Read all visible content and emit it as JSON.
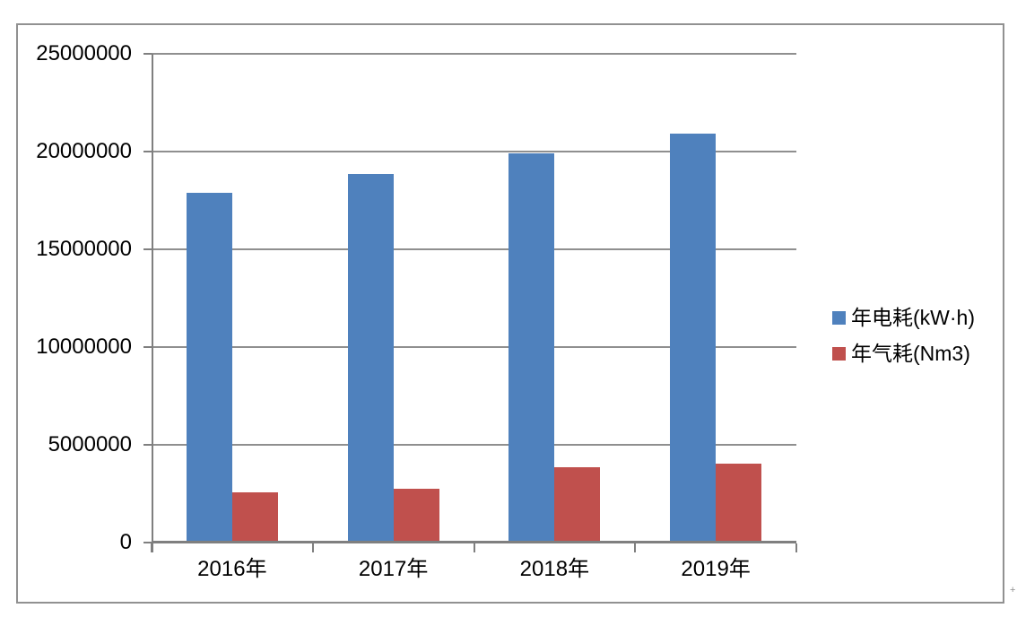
{
  "chart_data": {
    "type": "bar",
    "title": "",
    "xlabel": "",
    "ylabel": "",
    "categories": [
      "2016年",
      "2017年",
      "2018年",
      "2019年"
    ],
    "series": [
      {
        "name": "年电耗(kW·h)",
        "color": "#4F81BD",
        "values": [
          17900000,
          18850000,
          19900000,
          20900000
        ]
      },
      {
        "name": "年气耗(Nm3)",
        "color": "#C0504D",
        "values": [
          2550000,
          2750000,
          3850000,
          4050000
        ]
      }
    ],
    "ylim": [
      0,
      25000000
    ],
    "yticks": [
      25000000,
      20000000,
      15000000,
      10000000,
      5000000,
      0
    ],
    "grid": true,
    "legend_position": "right-middle"
  },
  "colors": {
    "grid": "#8f8f8f",
    "axis": "#7f7f7f",
    "frame_border": "#919191",
    "text": "#000000",
    "background": "#ffffff"
  },
  "page": {
    "margin_mark": "+"
  }
}
